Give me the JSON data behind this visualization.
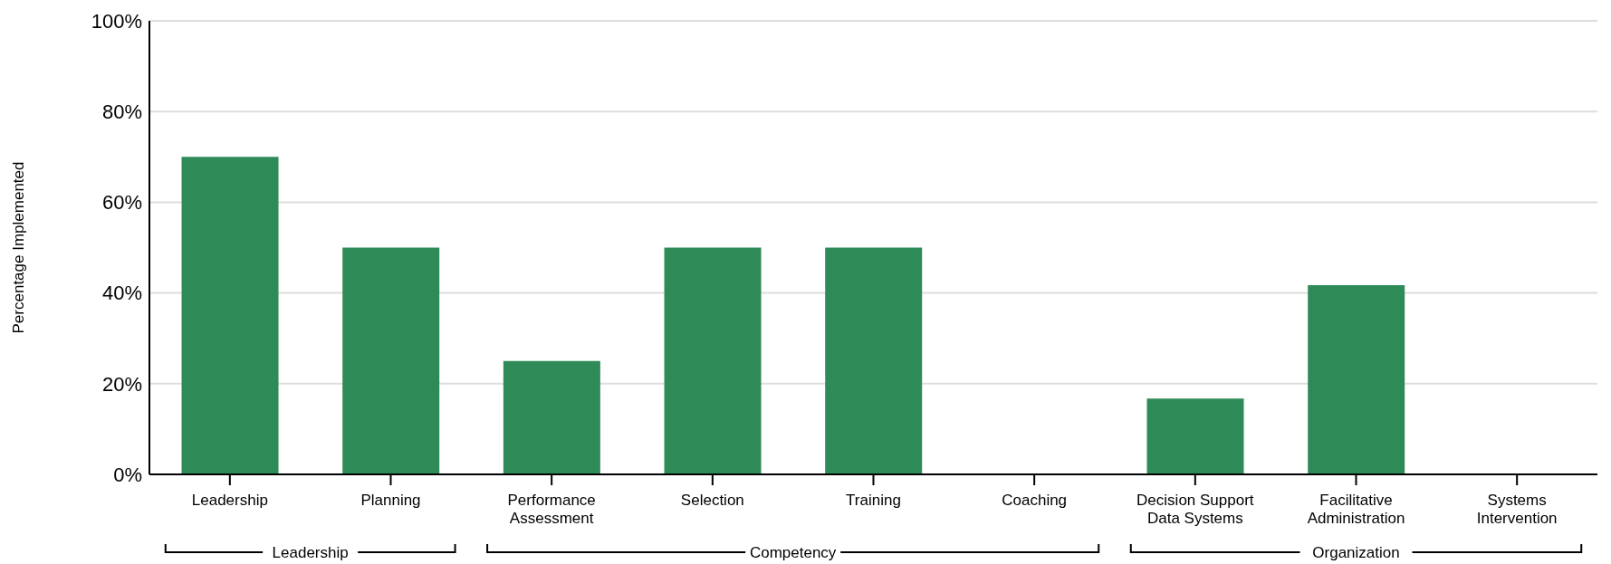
{
  "chart_data": {
    "type": "bar",
    "ylabel": "Percentage Implemented",
    "categories": [
      "Leadership",
      "Planning",
      "Performance Assessment",
      "Selection",
      "Training",
      "Coaching",
      "Decision Support Data Systems",
      "Facilitative Administration",
      "Systems Intervention"
    ],
    "values": [
      70,
      50,
      25,
      50,
      50,
      0,
      16.7,
      41.7,
      0
    ],
    "color": "#2e8b57",
    "ylim": [
      0,
      100
    ],
    "yticks": [
      {
        "value": 0,
        "label": "0%"
      },
      {
        "value": 20,
        "label": "20%"
      },
      {
        "value": 40,
        "label": "40%"
      },
      {
        "value": 60,
        "label": "60%"
      },
      {
        "value": 80,
        "label": "80%"
      },
      {
        "value": 100,
        "label": "100%"
      }
    ],
    "grid": "y",
    "annotations": [
      "Leadership",
      "Competency",
      "Organization"
    ]
  }
}
